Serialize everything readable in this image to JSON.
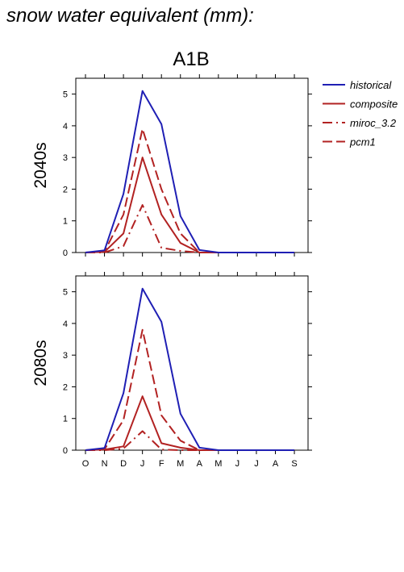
{
  "page_title": "snow water equivalent (mm):",
  "scenario_title": "A1B",
  "legend": [
    {
      "label": "historical",
      "color": "#1f1fb4",
      "dash": "solid"
    },
    {
      "label": "composite",
      "color": "#b22222",
      "dash": "solid"
    },
    {
      "label": "miroc_3.2",
      "color": "#b22222",
      "dash": "dashdot"
    },
    {
      "label": "pcm1",
      "color": "#b22222",
      "dash": "dashed"
    }
  ],
  "chart_data": [
    {
      "type": "line",
      "ylabel": "2040s",
      "categories": [
        "O",
        "N",
        "D",
        "J",
        "F",
        "M",
        "A",
        "M",
        "J",
        "J",
        "A",
        "S"
      ],
      "ylim": [
        0,
        5.5
      ],
      "yticks": [
        0,
        1,
        2,
        3,
        4,
        5
      ],
      "series": [
        {
          "name": "historical",
          "values": [
            0,
            0.07,
            1.85,
            5.1,
            4.05,
            1.15,
            0.08,
            0,
            0,
            0,
            0,
            0
          ]
        },
        {
          "name": "composite",
          "values": [
            0,
            0.02,
            0.6,
            3.0,
            1.2,
            0.3,
            0,
            0,
            0,
            0,
            0,
            0
          ]
        },
        {
          "name": "miroc_3.2",
          "values": [
            0,
            0,
            0.2,
            1.5,
            0.15,
            0.05,
            0,
            0,
            0,
            0,
            0,
            0
          ]
        },
        {
          "name": "pcm1",
          "values": [
            0,
            0.03,
            1.2,
            3.9,
            2.0,
            0.6,
            0,
            0,
            0,
            0,
            0,
            0
          ]
        }
      ]
    },
    {
      "type": "line",
      "ylabel": "2080s",
      "categories": [
        "O",
        "N",
        "D",
        "J",
        "F",
        "M",
        "A",
        "M",
        "J",
        "J",
        "A",
        "S"
      ],
      "ylim": [
        0,
        5.5
      ],
      "yticks": [
        0,
        1,
        2,
        3,
        4,
        5
      ],
      "series": [
        {
          "name": "historical",
          "values": [
            0,
            0.07,
            1.8,
            5.1,
            4.05,
            1.15,
            0.08,
            0,
            0,
            0,
            0,
            0
          ]
        },
        {
          "name": "composite",
          "values": [
            0,
            0.02,
            0.12,
            1.7,
            0.22,
            0.08,
            0,
            0,
            0,
            0,
            0,
            0
          ]
        },
        {
          "name": "miroc_3.2",
          "values": [
            0,
            0,
            0.05,
            0.6,
            0.02,
            0,
            0,
            0,
            0,
            0,
            0,
            0
          ]
        },
        {
          "name": "pcm1",
          "values": [
            0,
            0.03,
            0.95,
            3.8,
            1.1,
            0.3,
            0,
            0,
            0,
            0,
            0,
            0
          ]
        }
      ]
    }
  ]
}
